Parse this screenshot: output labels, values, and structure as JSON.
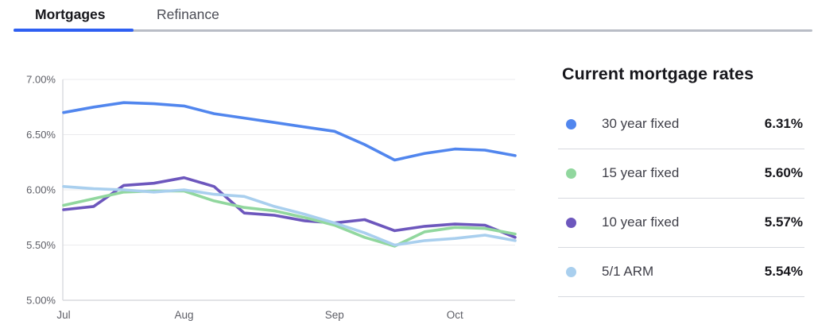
{
  "tabs": {
    "items": [
      {
        "label": "Mortgages",
        "active": true
      },
      {
        "label": "Refinance",
        "active": false
      }
    ]
  },
  "panel": {
    "title": "Current mortgage rates",
    "rows": [
      {
        "label": "30 year fixed",
        "value": "6.31%",
        "color": "#5186ee"
      },
      {
        "label": "15 year fixed",
        "value": "5.60%",
        "color": "#91d79e"
      },
      {
        "label": "10 year fixed",
        "value": "5.57%",
        "color": "#6d57bd"
      },
      {
        "label": "5/1 ARM",
        "value": "5.54%",
        "color": "#a9cfee"
      }
    ]
  },
  "colors": {
    "tab_accent": "#2e5ff2",
    "tab_track": "#b9bdc6",
    "gridline": "#ebebee",
    "axis": "#d9dade",
    "axis_text": "#5d5e66",
    "divider": "#d7d9df"
  },
  "chart_data": {
    "type": "line",
    "title": "",
    "xlabel": "",
    "ylabel": "",
    "ylim": [
      5.0,
      7.0
    ],
    "grid": true,
    "legend_position": "right-panel",
    "y_ticks": [
      "7.00%",
      "6.50%",
      "6.00%",
      "5.50%",
      "5.00%"
    ],
    "x_tick_labels": [
      {
        "label": "Jul",
        "index": 0
      },
      {
        "label": "Aug",
        "index": 4
      },
      {
        "label": "Sep",
        "index": 9
      },
      {
        "label": "Oct",
        "index": 13
      }
    ],
    "x_unit": "weeks (Jul through Oct)",
    "draw_order": [
      0,
      2,
      1,
      3
    ],
    "series": [
      {
        "name": "30 year fixed",
        "color": "#5186ee",
        "values": [
          6.7,
          6.75,
          6.79,
          6.78,
          6.76,
          6.69,
          6.65,
          6.61,
          6.57,
          6.53,
          6.41,
          6.27,
          6.33,
          6.37,
          6.36,
          6.31
        ]
      },
      {
        "name": "15 year fixed",
        "color": "#91d79e",
        "values": [
          5.86,
          5.92,
          5.98,
          5.99,
          5.99,
          5.9,
          5.84,
          5.81,
          5.75,
          5.68,
          5.57,
          5.49,
          5.62,
          5.66,
          5.65,
          5.6
        ]
      },
      {
        "name": "10 year fixed",
        "color": "#6d57bd",
        "values": [
          5.82,
          5.85,
          6.04,
          6.06,
          6.11,
          6.03,
          5.79,
          5.77,
          5.72,
          5.7,
          5.73,
          5.63,
          5.67,
          5.69,
          5.68,
          5.57
        ]
      },
      {
        "name": "5/1 ARM",
        "color": "#a9cfee",
        "values": [
          6.03,
          6.01,
          6.0,
          5.98,
          6.0,
          5.96,
          5.94,
          5.85,
          5.78,
          5.7,
          5.61,
          5.5,
          5.54,
          5.56,
          5.59,
          5.54
        ]
      }
    ]
  }
}
